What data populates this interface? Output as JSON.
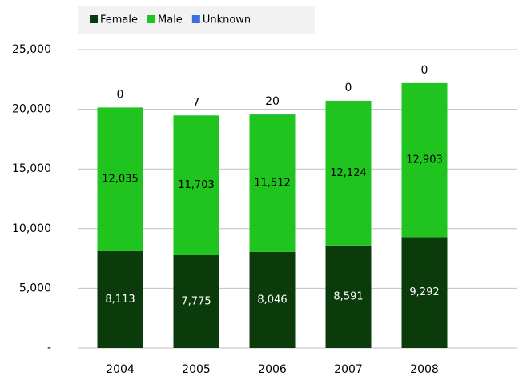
{
  "chart_data": {
    "type": "stacked_bar",
    "categories": [
      "2004",
      "2005",
      "2006",
      "2007",
      "2008"
    ],
    "series": [
      {
        "name": "Female",
        "color": "#0b3a0b",
        "values": [
          8113,
          7775,
          8046,
          8591,
          9292
        ],
        "value_labels": [
          "8,113",
          "7,775",
          "8,046",
          "8,591",
          "9,292"
        ]
      },
      {
        "name": "Male",
        "color": "#1fc41f",
        "values": [
          12035,
          11703,
          11512,
          12124,
          12903
        ],
        "value_labels": [
          "12,035",
          "11,703",
          "11,512",
          "12,124",
          "12,903"
        ]
      },
      {
        "name": "Unknown",
        "color": "#3b6fe0",
        "values": [
          0,
          7,
          20,
          0,
          0
        ]
      }
    ],
    "ylim": [
      0,
      25000
    ],
    "yticks": [
      {
        "value": 0,
        "label": "-"
      },
      {
        "value": 5000,
        "label": "5,000"
      },
      {
        "value": 10000,
        "label": "10,000"
      },
      {
        "value": 15000,
        "label": "15,000"
      },
      {
        "value": 20000,
        "label": "20,000"
      },
      {
        "value": 25000,
        "label": "25,000"
      }
    ],
    "grid": true,
    "legend": "top"
  }
}
